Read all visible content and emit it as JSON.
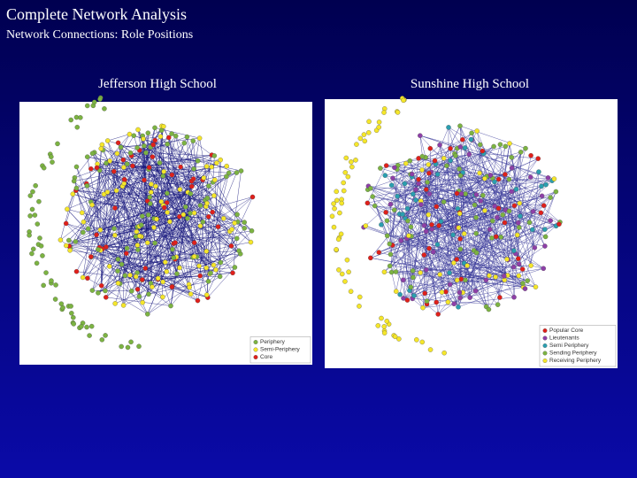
{
  "header": {
    "title": "Complete Network Analysis",
    "subtitle": "Network Connections: Role Positions"
  },
  "panels": [
    {
      "title": "Jefferson High School",
      "legend": [
        {
          "label": "Periphery",
          "color": "#7cb342"
        },
        {
          "label": "Semi-Periphery",
          "color": "#f5e62a"
        },
        {
          "label": "Core",
          "color": "#e0201b"
        }
      ]
    },
    {
      "title": "Sunshine High School",
      "legend": [
        {
          "label": "Popular Core",
          "color": "#e0201b"
        },
        {
          "label": "Lieutenants",
          "color": "#8e3fa8"
        },
        {
          "label": "Semi Periphery",
          "color": "#2a9fb0"
        },
        {
          "label": "Sending Periphery",
          "color": "#7cb342"
        },
        {
          "label": "Receiving Periphery",
          "color": "#f5e62a"
        }
      ]
    }
  ]
}
